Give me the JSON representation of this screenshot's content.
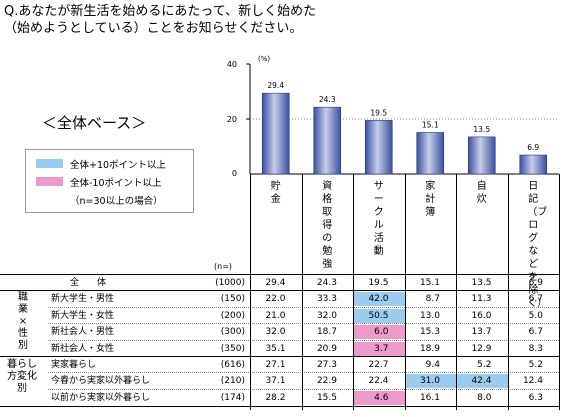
{
  "question": {
    "line1": "Q.あなたが新生活を始めるにあたって、新しく始めた",
    "line2": "（始めようとしている）ことをお知らせください。"
  },
  "base_label": "＜全体ベース＞",
  "legend": {
    "items": [
      {
        "label": "全体+10ポイント以上",
        "color": "#99ccee"
      },
      {
        "label": "全体-10ポイント以上",
        "color": "#ee99cc"
      }
    ],
    "note": "（n=30以上の場合）"
  },
  "colors": {
    "bar": "#3a4fa0",
    "bar_light": "#c8cde8",
    "highlight_blue": "#99ccee",
    "highlight_pink": "#ee99cc"
  },
  "chart_data": {
    "type": "bar",
    "unit": "(%)",
    "ylim": [
      0,
      40
    ],
    "yticks": [
      "40",
      "20",
      "0"
    ],
    "categories": [
      "貯金",
      "資格取得の勉強",
      "サークル活動",
      "家計簿",
      "自炊",
      "日記（ブログなどを除く）"
    ],
    "values": [
      29.4,
      24.3,
      19.5,
      15.1,
      13.5,
      6.9
    ],
    "value_labels": [
      "29.4",
      "24.3",
      "19.5",
      "15.1",
      "13.5",
      "6.9"
    ]
  },
  "table": {
    "n_header": "(n=)",
    "groups": [
      {
        "label": "職業×性別"
      },
      {
        "label": "暮らし方変化別"
      }
    ],
    "rows": [
      {
        "label": "全　　体",
        "n": "(1000)",
        "values": [
          "29.4",
          "24.3",
          "19.5",
          "15.1",
          "13.5",
          "6.9"
        ],
        "hl": [
          0,
          0,
          0,
          0,
          0,
          0
        ]
      },
      {
        "label": "新大学生・男性",
        "n": "(150)",
        "values": [
          "22.0",
          "33.3",
          "42.0",
          "8.7",
          "11.3",
          "6.7"
        ],
        "hl": [
          0,
          0,
          1,
          0,
          0,
          0
        ]
      },
      {
        "label": "新大学生・女性",
        "n": "(200)",
        "values": [
          "21.0",
          "32.0",
          "50.5",
          "13.0",
          "16.0",
          "5.0"
        ],
        "hl": [
          0,
          0,
          1,
          0,
          0,
          0
        ]
      },
      {
        "label": "新社会人・男性",
        "n": "(300)",
        "values": [
          "32.0",
          "18.7",
          "6.0",
          "15.3",
          "13.7",
          "6.7"
        ],
        "hl": [
          0,
          0,
          2,
          0,
          0,
          0
        ]
      },
      {
        "label": "新社会人・女性",
        "n": "(350)",
        "values": [
          "35.1",
          "20.9",
          "3.7",
          "18.9",
          "12.9",
          "8.3"
        ],
        "hl": [
          0,
          0,
          2,
          0,
          0,
          0
        ]
      },
      {
        "label": "実家暮らし",
        "n": "(616)",
        "values": [
          "27.1",
          "27.3",
          "22.7",
          "9.4",
          "5.2",
          "5.2"
        ],
        "hl": [
          0,
          0,
          0,
          0,
          0,
          0
        ]
      },
      {
        "label": "今春から実家以外暮らし",
        "n": "(210)",
        "values": [
          "37.1",
          "22.9",
          "22.4",
          "31.0",
          "42.4",
          "12.4"
        ],
        "hl": [
          0,
          0,
          0,
          1,
          1,
          0
        ]
      },
      {
        "label": "以前から実家以外暮らし",
        "n": "(174)",
        "values": [
          "28.2",
          "15.5",
          "4.6",
          "16.1",
          "8.0",
          "6.3"
        ],
        "hl": [
          0,
          0,
          2,
          0,
          0,
          0
        ]
      }
    ]
  }
}
